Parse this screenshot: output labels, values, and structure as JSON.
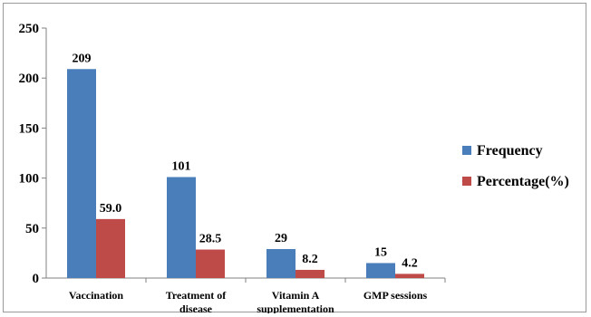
{
  "chart_data": {
    "type": "bar",
    "categories": [
      [
        "Vaccination"
      ],
      [
        "Treatment of",
        "disease"
      ],
      [
        "Vitamin A",
        "supplementation"
      ],
      [
        "GMP sessions"
      ]
    ],
    "series": [
      {
        "name": "Frequency",
        "values": [
          209,
          101,
          29,
          15
        ],
        "labels": [
          "209",
          "101",
          "29",
          "15"
        ],
        "color": "#4a7ebb"
      },
      {
        "name": "Percentage(%)",
        "values": [
          59.0,
          28.5,
          8.2,
          4.2
        ],
        "labels": [
          "59.0",
          "28.5",
          "8.2",
          "4.2"
        ],
        "color": "#be4b48"
      }
    ],
    "ylim": [
      0,
      250
    ],
    "yticks": [
      "0",
      "50",
      "100",
      "150",
      "200",
      "250"
    ],
    "grid": false,
    "legend_position": "right"
  }
}
